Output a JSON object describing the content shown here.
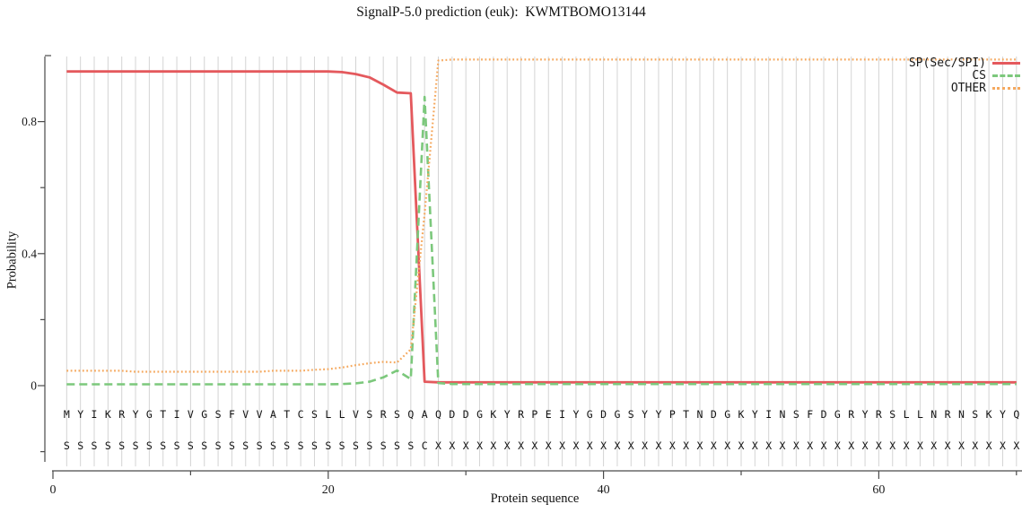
{
  "chart_data": {
    "type": "line",
    "title": "SignalP-5.0 prediction (euk):  KWMTBOMO13144",
    "xlabel": "Protein sequence",
    "ylabel": "Probability",
    "x_range_residues": [
      1,
      70
    ],
    "ylim": [
      0,
      1
    ],
    "grid": {
      "vertical_per_residue": true,
      "color": "#d4d4d4"
    },
    "legend_position": "top-right",
    "axis_color": "#4a4a4a",
    "text_color": "#1a1a1a",
    "x_ticks": [
      {
        "v": 0,
        "label": "0"
      },
      {
        "v": 10,
        "label": ""
      },
      {
        "v": 20,
        "label": "20"
      },
      {
        "v": 30,
        "label": ""
      },
      {
        "v": 40,
        "label": "40"
      },
      {
        "v": 50,
        "label": ""
      },
      {
        "v": 60,
        "label": "60"
      },
      {
        "v": 70,
        "label": ""
      }
    ],
    "y_ticks": [
      {
        "v": 1.0,
        "label": ""
      },
      {
        "v": 0.8,
        "label": "0.8"
      },
      {
        "v": 0.6,
        "label": ""
      },
      {
        "v": 0.4,
        "label": "0.4"
      },
      {
        "v": 0.2,
        "label": ""
      },
      {
        "v": 0.0,
        "label": "0"
      },
      {
        "v": -0.2,
        "label": ""
      }
    ],
    "sequence": "MYIKRYGTIVGSFVVATCSLLVSRSQAQDDGKYRPEIYGDGSYYPTNDGKYINSFDGRYRSLLNRNSKYQ",
    "tag_row": "SSSSSSSSSSSSSSSSSSSSSSSSSSCXXXXXXXXXXXXXXXXXXXXXXXXXXXXXXXXXXXXXXXXXXX",
    "series": [
      {
        "name": "SP(Sec/SPI)",
        "color": "#e4595d",
        "style": "solid",
        "values": [
          0.952,
          0.952,
          0.952,
          0.952,
          0.952,
          0.952,
          0.952,
          0.952,
          0.952,
          0.952,
          0.952,
          0.952,
          0.952,
          0.952,
          0.952,
          0.952,
          0.952,
          0.952,
          0.952,
          0.952,
          0.95,
          0.944,
          0.934,
          0.912,
          0.888,
          0.886,
          0.012,
          0.01,
          0.01,
          0.01,
          0.01,
          0.01,
          0.01,
          0.01,
          0.01,
          0.01,
          0.01,
          0.01,
          0.01,
          0.01,
          0.01,
          0.01,
          0.01,
          0.01,
          0.01,
          0.01,
          0.01,
          0.01,
          0.01,
          0.01,
          0.01,
          0.01,
          0.01,
          0.01,
          0.01,
          0.01,
          0.01,
          0.01,
          0.01,
          0.01,
          0.01,
          0.01,
          0.01,
          0.01,
          0.01,
          0.01,
          0.01,
          0.01,
          0.01,
          0.01
        ]
      },
      {
        "name": "CS",
        "color": "#7cc87c",
        "style": "dashed",
        "values": [
          0.004,
          0.004,
          0.004,
          0.004,
          0.004,
          0.004,
          0.004,
          0.004,
          0.004,
          0.004,
          0.004,
          0.004,
          0.004,
          0.004,
          0.004,
          0.004,
          0.004,
          0.004,
          0.004,
          0.004,
          0.005,
          0.007,
          0.012,
          0.025,
          0.046,
          0.02,
          0.875,
          0.008,
          0.005,
          0.005,
          0.005,
          0.005,
          0.005,
          0.005,
          0.005,
          0.005,
          0.005,
          0.005,
          0.005,
          0.005,
          0.005,
          0.005,
          0.005,
          0.005,
          0.005,
          0.005,
          0.005,
          0.005,
          0.005,
          0.005,
          0.005,
          0.005,
          0.005,
          0.005,
          0.005,
          0.005,
          0.005,
          0.005,
          0.005,
          0.005,
          0.005,
          0.005,
          0.005,
          0.005,
          0.005,
          0.005,
          0.005,
          0.005,
          0.005,
          0.005
        ]
      },
      {
        "name": "OTHER",
        "color": "#f5a95f",
        "style": "dotted",
        "values": [
          0.045,
          0.045,
          0.045,
          0.045,
          0.045,
          0.042,
          0.042,
          0.042,
          0.042,
          0.042,
          0.042,
          0.042,
          0.042,
          0.042,
          0.042,
          0.045,
          0.045,
          0.045,
          0.048,
          0.05,
          0.055,
          0.062,
          0.068,
          0.072,
          0.07,
          0.11,
          0.52,
          0.985,
          0.988,
          0.988,
          0.988,
          0.988,
          0.988,
          0.988,
          0.988,
          0.988,
          0.988,
          0.988,
          0.988,
          0.988,
          0.988,
          0.988,
          0.988,
          0.988,
          0.988,
          0.988,
          0.988,
          0.988,
          0.988,
          0.988,
          0.988,
          0.988,
          0.988,
          0.988,
          0.988,
          0.988,
          0.988,
          0.988,
          0.988,
          0.988,
          0.988,
          0.988,
          0.988,
          0.988,
          0.988,
          0.988,
          0.988,
          0.988,
          0.988,
          0.988
        ]
      }
    ]
  }
}
